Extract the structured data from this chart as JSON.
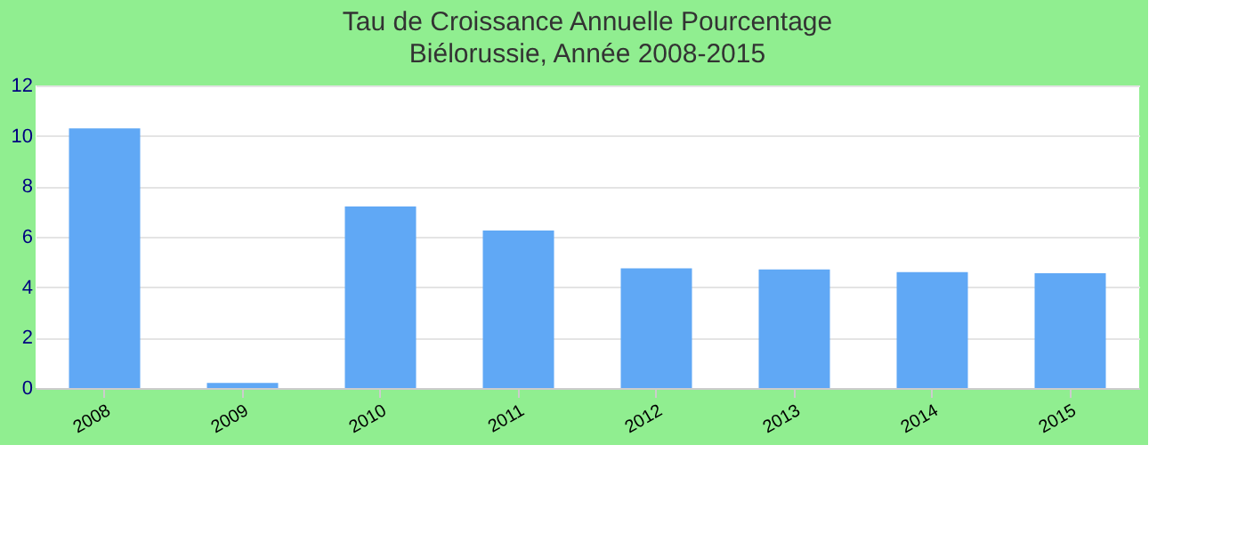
{
  "chart_data": {
    "type": "bar",
    "title": "Tau de Croissance Annuelle  Pourcentage",
    "subtitle": "Biélorussie, Année 2008-2015",
    "categories": [
      "2008",
      "2009",
      "2010",
      "2011",
      "2012",
      "2013",
      "2014",
      "2015"
    ],
    "values": [
      10.3,
      0.2,
      7.2,
      6.25,
      4.75,
      4.7,
      4.6,
      4.55
    ],
    "color": "#60a8f5",
    "ylim": [
      0,
      12
    ],
    "yticks": [
      0,
      2,
      4,
      6,
      8,
      10,
      12
    ],
    "grid": "y"
  }
}
